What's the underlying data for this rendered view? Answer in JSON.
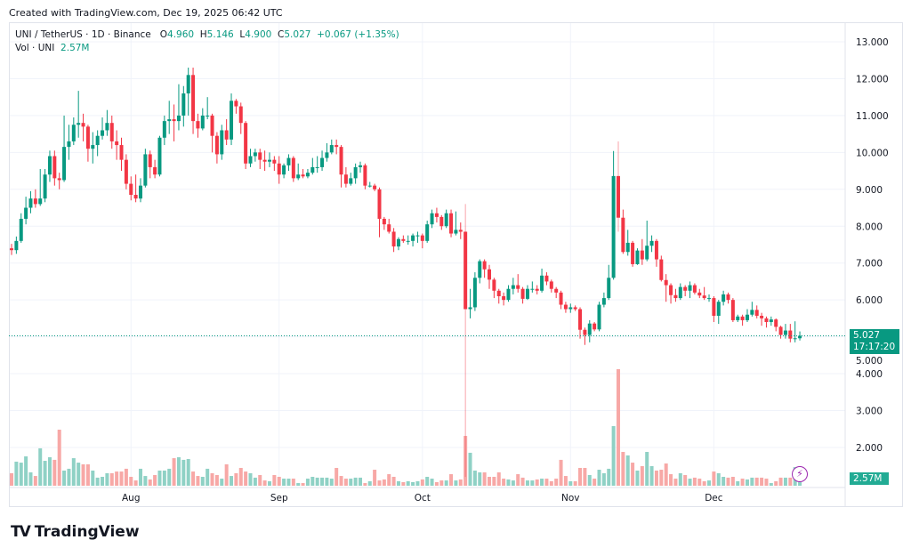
{
  "header": {
    "created": "Created with TradingView.com, Dec 19, 2025 06:42 UTC"
  },
  "legend": {
    "symbol": "UNI / TetherUS · 1D · Binance",
    "o_label": "O",
    "o": "4.960",
    "h_label": "H",
    "h": "5.146",
    "l_label": "L",
    "l": "4.900",
    "c_label": "C",
    "c": "5.027",
    "change": "+0.067 (+1.35%)",
    "vol_label": "Vol · UNI",
    "vol": "2.57M"
  },
  "price_label": {
    "price": "5.027",
    "countdown": "17:17:20"
  },
  "volume_label": "2.57M",
  "logo": {
    "text": "TradingView",
    "mark": "TV"
  },
  "icons": {
    "flash": "lightning-icon"
  },
  "colors": {
    "up": "#089981",
    "down": "#f23645",
    "vol_up": "#8fd1c5",
    "vol_down": "#f7a8a6",
    "grid": "#f0f3fa",
    "last_price": "#089981",
    "flash": "#9c27b0"
  },
  "chart_data": {
    "type": "candlestick",
    "title": "UNI / TetherUS · 1D · Binance",
    "y_ticks": [
      "2.000",
      "3.000",
      "4.000",
      "5.000",
      "6.000",
      "7.000",
      "8.000",
      "9.000",
      "10.000",
      "11.000",
      "12.000",
      "13.000"
    ],
    "ylim": [
      1.2,
      13.5
    ],
    "x_ticks": [
      {
        "label": "Aug",
        "date": "2025-08-01"
      },
      {
        "label": "Sep",
        "date": "2025-09-01"
      },
      {
        "label": "Oct",
        "date": "2025-10-01"
      },
      {
        "label": "Nov",
        "date": "2025-11-01"
      },
      {
        "label": "Dec",
        "date": "2025-12-01"
      }
    ],
    "last_date": "2025-12-19",
    "last_price": 5.027,
    "grid": true,
    "ohlc": [
      [
        7.4,
        7.52,
        7.22,
        7.35
      ],
      [
        7.35,
        7.72,
        7.25,
        7.6
      ],
      [
        7.6,
        8.35,
        7.55,
        8.2
      ],
      [
        8.2,
        8.8,
        8.05,
        8.5
      ],
      [
        8.5,
        8.95,
        8.35,
        8.75
      ],
      [
        8.75,
        9.0,
        8.5,
        8.6
      ],
      [
        8.6,
        9.55,
        8.55,
        8.75
      ],
      [
        8.75,
        9.55,
        8.65,
        9.4
      ],
      [
        9.4,
        10.05,
        9.2,
        9.9
      ],
      [
        9.9,
        10.05,
        9.1,
        9.3
      ],
      [
        9.3,
        9.45,
        9.0,
        9.25
      ],
      [
        9.25,
        11.0,
        9.2,
        10.15
      ],
      [
        10.15,
        10.75,
        9.8,
        10.3
      ],
      [
        10.3,
        10.95,
        10.2,
        10.75
      ],
      [
        10.75,
        11.67,
        10.4,
        10.8
      ],
      [
        10.8,
        11.05,
        10.3,
        10.7
      ],
      [
        10.7,
        10.75,
        9.75,
        10.1
      ],
      [
        10.1,
        10.55,
        9.7,
        10.2
      ],
      [
        10.2,
        10.6,
        9.9,
        10.45
      ],
      [
        10.45,
        10.95,
        10.35,
        10.6
      ],
      [
        10.6,
        11.15,
        10.45,
        10.8
      ],
      [
        10.8,
        11.0,
        10.1,
        10.3
      ],
      [
        10.3,
        10.6,
        9.8,
        10.2
      ],
      [
        10.2,
        10.4,
        9.5,
        9.8
      ],
      [
        9.8,
        9.95,
        9.0,
        9.15
      ],
      [
        9.15,
        9.35,
        8.7,
        8.85
      ],
      [
        8.85,
        9.4,
        8.65,
        8.75
      ],
      [
        8.75,
        9.3,
        8.65,
        9.1
      ],
      [
        9.1,
        10.1,
        9.05,
        9.95
      ],
      [
        9.95,
        10.05,
        9.3,
        9.6
      ],
      [
        9.6,
        9.8,
        9.3,
        9.4
      ],
      [
        9.4,
        10.45,
        9.35,
        10.4
      ],
      [
        10.4,
        11.0,
        10.2,
        10.85
      ],
      [
        10.85,
        11.4,
        10.5,
        10.9
      ],
      [
        10.9,
        11.3,
        10.3,
        10.85
      ],
      [
        10.85,
        11.85,
        10.6,
        11.0
      ],
      [
        11.0,
        11.8,
        10.7,
        11.6
      ],
      [
        11.6,
        12.3,
        11.0,
        12.1
      ],
      [
        12.1,
        12.3,
        10.5,
        10.85
      ],
      [
        10.85,
        11.05,
        10.4,
        10.65
      ],
      [
        10.65,
        11.2,
        10.6,
        11.0
      ],
      [
        11.0,
        11.5,
        10.9,
        11.0
      ],
      [
        11.0,
        11.05,
        10.0,
        10.45
      ],
      [
        10.45,
        10.55,
        9.7,
        9.95
      ],
      [
        9.95,
        10.75,
        9.8,
        10.6
      ],
      [
        10.6,
        10.9,
        10.2,
        10.35
      ],
      [
        10.35,
        11.6,
        10.2,
        11.4
      ],
      [
        11.4,
        11.45,
        11.05,
        11.25
      ],
      [
        11.25,
        11.35,
        10.5,
        10.8
      ],
      [
        10.8,
        10.85,
        9.55,
        9.7
      ],
      [
        9.7,
        10.1,
        9.6,
        9.9
      ],
      [
        9.9,
        10.1,
        9.75,
        10.0
      ],
      [
        10.0,
        10.1,
        9.55,
        9.8
      ],
      [
        9.8,
        10.05,
        9.5,
        9.75
      ],
      [
        9.75,
        10.0,
        9.6,
        9.8
      ],
      [
        9.8,
        9.9,
        9.5,
        9.7
      ],
      [
        9.7,
        9.9,
        9.15,
        9.4
      ],
      [
        9.4,
        9.7,
        9.3,
        9.65
      ],
      [
        9.65,
        9.95,
        9.5,
        9.85
      ],
      [
        9.85,
        9.9,
        9.2,
        9.3
      ],
      [
        9.3,
        9.7,
        9.25,
        9.4
      ],
      [
        9.4,
        9.55,
        9.3,
        9.35
      ],
      [
        9.35,
        9.55,
        9.3,
        9.45
      ],
      [
        9.45,
        9.85,
        9.4,
        9.6
      ],
      [
        9.6,
        9.9,
        9.45,
        9.6
      ],
      [
        9.6,
        10.05,
        9.5,
        9.85
      ],
      [
        9.85,
        10.25,
        9.75,
        10.0
      ],
      [
        10.0,
        10.35,
        9.95,
        10.2
      ],
      [
        10.2,
        10.35,
        9.95,
        10.15
      ],
      [
        10.15,
        10.2,
        9.05,
        9.4
      ],
      [
        9.4,
        9.6,
        9.05,
        9.15
      ],
      [
        9.15,
        9.45,
        9.1,
        9.3
      ],
      [
        9.3,
        9.7,
        9.15,
        9.6
      ],
      [
        9.6,
        9.75,
        9.45,
        9.65
      ],
      [
        9.65,
        9.7,
        9.0,
        9.1
      ],
      [
        9.1,
        9.2,
        9.05,
        9.1
      ],
      [
        9.1,
        9.15,
        8.95,
        9.0
      ],
      [
        9.0,
        9.05,
        7.7,
        8.2
      ],
      [
        8.2,
        8.25,
        7.9,
        8.05
      ],
      [
        8.05,
        8.2,
        7.8,
        7.85
      ],
      [
        7.85,
        7.95,
        7.3,
        7.45
      ],
      [
        7.45,
        7.7,
        7.35,
        7.65
      ],
      [
        7.65,
        7.75,
        7.55,
        7.6
      ],
      [
        7.6,
        7.75,
        7.5,
        7.6
      ],
      [
        7.6,
        7.8,
        7.45,
        7.75
      ],
      [
        7.75,
        7.85,
        7.55,
        7.75
      ],
      [
        7.75,
        7.8,
        7.4,
        7.6
      ],
      [
        7.6,
        8.15,
        7.55,
        8.05
      ],
      [
        8.05,
        8.45,
        7.95,
        8.35
      ],
      [
        8.35,
        8.5,
        8.1,
        8.25
      ],
      [
        8.25,
        8.3,
        7.9,
        8.0
      ],
      [
        8.0,
        8.45,
        7.95,
        8.35
      ],
      [
        8.35,
        8.45,
        7.7,
        7.8
      ],
      [
        7.8,
        8.4,
        7.75,
        7.9
      ],
      [
        7.9,
        8.1,
        7.65,
        7.85
      ],
      [
        7.85,
        8.6,
        1.2,
        5.75
      ],
      [
        5.75,
        6.3,
        5.5,
        5.8
      ],
      [
        5.8,
        6.75,
        5.7,
        6.6
      ],
      [
        6.6,
        7.1,
        6.45,
        7.05
      ],
      [
        7.05,
        7.1,
        6.6,
        6.83
      ],
      [
        6.83,
        6.95,
        6.3,
        6.55
      ],
      [
        6.55,
        6.6,
        6.05,
        6.25
      ],
      [
        6.25,
        6.3,
        5.9,
        6.1
      ],
      [
        6.1,
        6.2,
        5.85,
        6.0
      ],
      [
        6.0,
        6.4,
        5.95,
        6.3
      ],
      [
        6.3,
        6.6,
        6.15,
        6.4
      ],
      [
        6.4,
        6.7,
        6.2,
        6.3
      ],
      [
        6.3,
        6.35,
        5.9,
        6.03
      ],
      [
        6.03,
        6.4,
        6.0,
        6.3
      ],
      [
        6.3,
        6.5,
        6.2,
        6.3
      ],
      [
        6.3,
        6.4,
        6.15,
        6.25
      ],
      [
        6.25,
        6.85,
        6.2,
        6.66
      ],
      [
        6.66,
        6.75,
        6.4,
        6.5
      ],
      [
        6.5,
        6.55,
        6.2,
        6.3
      ],
      [
        6.3,
        6.35,
        6.05,
        6.2
      ],
      [
        6.2,
        6.25,
        5.75,
        5.87
      ],
      [
        5.87,
        5.95,
        5.65,
        5.75
      ],
      [
        5.75,
        5.9,
        5.65,
        5.8
      ],
      [
        5.8,
        5.85,
        5.7,
        5.75
      ],
      [
        5.75,
        5.8,
        4.95,
        5.19
      ],
      [
        5.19,
        5.25,
        4.78,
        5.05
      ],
      [
        5.05,
        5.45,
        4.85,
        5.36
      ],
      [
        5.36,
        5.4,
        5.15,
        5.2
      ],
      [
        5.2,
        5.95,
        5.15,
        5.87
      ],
      [
        5.87,
        6.2,
        5.8,
        6.05
      ],
      [
        6.05,
        6.95,
        6.0,
        6.6
      ],
      [
        6.6,
        10.04,
        6.55,
        9.36
      ],
      [
        9.36,
        10.3,
        7.85,
        8.23
      ],
      [
        8.23,
        8.45,
        7.25,
        7.3
      ],
      [
        7.3,
        7.9,
        7.2,
        7.55
      ],
      [
        7.55,
        7.6,
        6.9,
        6.97
      ],
      [
        6.97,
        7.4,
        6.95,
        7.34
      ],
      [
        7.34,
        7.65,
        6.95,
        7.1
      ],
      [
        7.1,
        8.15,
        7.05,
        7.47
      ],
      [
        7.47,
        7.75,
        7.3,
        7.6
      ],
      [
        7.6,
        7.65,
        6.9,
        7.1
      ],
      [
        7.1,
        7.2,
        6.5,
        6.54
      ],
      [
        6.54,
        6.7,
        5.95,
        6.4
      ],
      [
        6.4,
        6.45,
        5.9,
        6.13
      ],
      [
        6.13,
        6.3,
        5.95,
        6.05
      ],
      [
        6.05,
        6.45,
        6.0,
        6.35
      ],
      [
        6.35,
        6.4,
        6.1,
        6.25
      ],
      [
        6.25,
        6.5,
        6.05,
        6.4
      ],
      [
        6.4,
        6.45,
        6.15,
        6.2
      ],
      [
        6.2,
        6.3,
        6.05,
        6.12
      ],
      [
        6.12,
        6.35,
        6.0,
        6.05
      ],
      [
        6.05,
        6.15,
        5.95,
        6.05
      ],
      [
        6.05,
        6.1,
        5.4,
        5.57
      ],
      [
        5.57,
        6.0,
        5.35,
        5.95
      ],
      [
        5.95,
        6.25,
        5.85,
        6.15
      ],
      [
        6.15,
        6.2,
        5.9,
        6.0
      ],
      [
        6.0,
        6.05,
        5.4,
        5.45
      ],
      [
        5.45,
        5.6,
        5.4,
        5.55
      ],
      [
        5.55,
        5.6,
        5.3,
        5.45
      ],
      [
        5.45,
        5.75,
        5.4,
        5.6
      ],
      [
        5.6,
        5.95,
        5.55,
        5.73
      ],
      [
        5.73,
        5.85,
        5.5,
        5.57
      ],
      [
        5.57,
        5.65,
        5.3,
        5.5
      ],
      [
        5.5,
        5.55,
        5.25,
        5.4
      ],
      [
        5.4,
        5.55,
        5.3,
        5.47
      ],
      [
        5.47,
        5.5,
        5.15,
        5.27
      ],
      [
        5.27,
        5.3,
        4.95,
        5.05
      ],
      [
        5.05,
        5.35,
        4.95,
        5.17
      ],
      [
        5.17,
        5.35,
        4.85,
        4.95
      ],
      [
        4.95,
        5.42,
        4.85,
        4.96
      ],
      [
        4.96,
        5.146,
        4.9,
        5.027
      ]
    ],
    "volume_m": [
      9.0,
      17.3,
      16.6,
      21.1,
      9.6,
      7.0,
      26.9,
      17.9,
      20.5,
      18.6,
      40.3,
      10.9,
      12.2,
      19.8,
      16.6,
      15.4,
      15.4,
      10.9,
      5.8,
      6.4,
      9.0,
      9.0,
      10.2,
      10.2,
      12.2,
      6.4,
      3.8,
      12.2,
      7.0,
      4.5,
      7.7,
      10.9,
      10.9,
      12.2,
      19.8,
      20.5,
      18.6,
      19.2,
      10.2,
      7.0,
      6.4,
      12.2,
      9.0,
      7.7,
      5.1,
      15.4,
      7.0,
      9.0,
      12.8,
      10.2,
      9.0,
      5.8,
      7.7,
      3.8,
      3.2,
      7.7,
      6.4,
      5.1,
      5.1,
      5.1,
      1.9,
      1.9,
      5.1,
      6.4,
      5.8,
      5.8,
      5.8,
      5.1,
      12.8,
      7.0,
      5.1,
      5.1,
      5.8,
      5.8,
      1.9,
      3.2,
      11.5,
      3.8,
      4.5,
      8.3,
      6.4,
      3.2,
      2.6,
      3.2,
      2.6,
      3.2,
      4.5,
      6.4,
      5.1,
      2.6,
      3.8,
      3.8,
      8.3,
      3.8,
      4.5,
      35.8,
      23.7,
      10.9,
      9.6,
      9.6,
      6.4,
      6.4,
      9.6,
      5.1,
      4.5,
      3.8,
      8.3,
      5.8,
      3.8,
      3.8,
      4.5,
      5.1,
      5.1,
      3.2,
      5.1,
      18.6,
      7.0,
      3.2,
      3.2,
      12.8,
      12.8,
      7.7,
      5.1,
      11.5,
      9.0,
      12.2,
      42.9,
      83.8,
      24.3,
      21.8,
      16.6,
      10.9,
      14.1,
      24.3,
      14.1,
      10.9,
      11.5,
      16.0,
      8.3,
      5.1,
      9.0,
      7.7,
      5.1,
      5.8,
      5.1,
      3.2,
      3.8,
      10.2,
      9.0,
      6.4,
      5.8,
      6.4,
      3.2,
      5.1,
      4.5,
      5.8,
      5.8,
      5.8,
      5.1,
      1.9,
      3.2,
      5.8,
      5.8,
      5.8,
      13.4,
      2.57
    ]
  }
}
